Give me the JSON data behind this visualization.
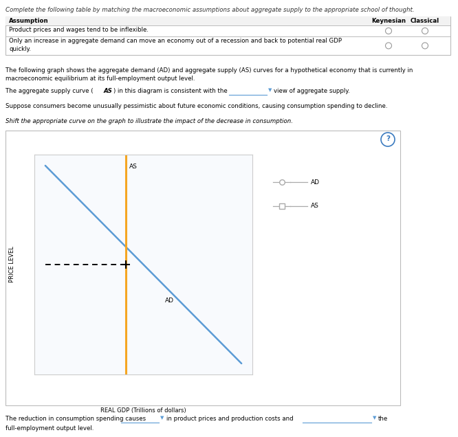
{
  "bg_color": "#ffffff",
  "title_text": "Complete the following table by matching the macroeconomic assumptions about aggregate supply to the appropriate school of thought.",
  "table_header_assumption": "Assumption",
  "table_header_keynesian": "Keynesian",
  "table_header_classical": "Classical",
  "table_row1": "Product prices and wages tend to be inflexible.",
  "table_row2a": "Only an increase in aggregate demand can move an economy out of a recession and back to potential real GDP",
  "table_row2b": "quickly.",
  "para1a": "The following graph shows the aggregate demand (AD) and aggregate supply (AS) curves for a hypothetical economy that is currently in",
  "para1b": "macroeconomic equilibrium at its full-employment output level.",
  "para2_pre": "The aggregate supply curve (",
  "para2_as": "AS",
  "para2_post": ") in this diagram is consistent with the",
  "para2_end": "view of aggregate supply.",
  "para3": "Suppose consumers become unusually pessimistic about future economic conditions, causing consumption spending to decline.",
  "para4": "Shift the appropriate curve on the graph to illustrate the impact of the decrease in consumption.",
  "xlabel": "REAL GDP (Trillions of dollars)",
  "ylabel": "PRICE LEVEL",
  "ad_color": "#5b9bd5",
  "as_color": "#f5a623",
  "legend_color": "#aaaaaa",
  "question_mark_color": "#3a7abf",
  "bottom1": "The reduction in consumption spending causes",
  "bottom2": "in product prices and production costs and",
  "bottom3": "the",
  "bottom4": "full-employment output level.",
  "dropdown_color": "#5b9bd5"
}
